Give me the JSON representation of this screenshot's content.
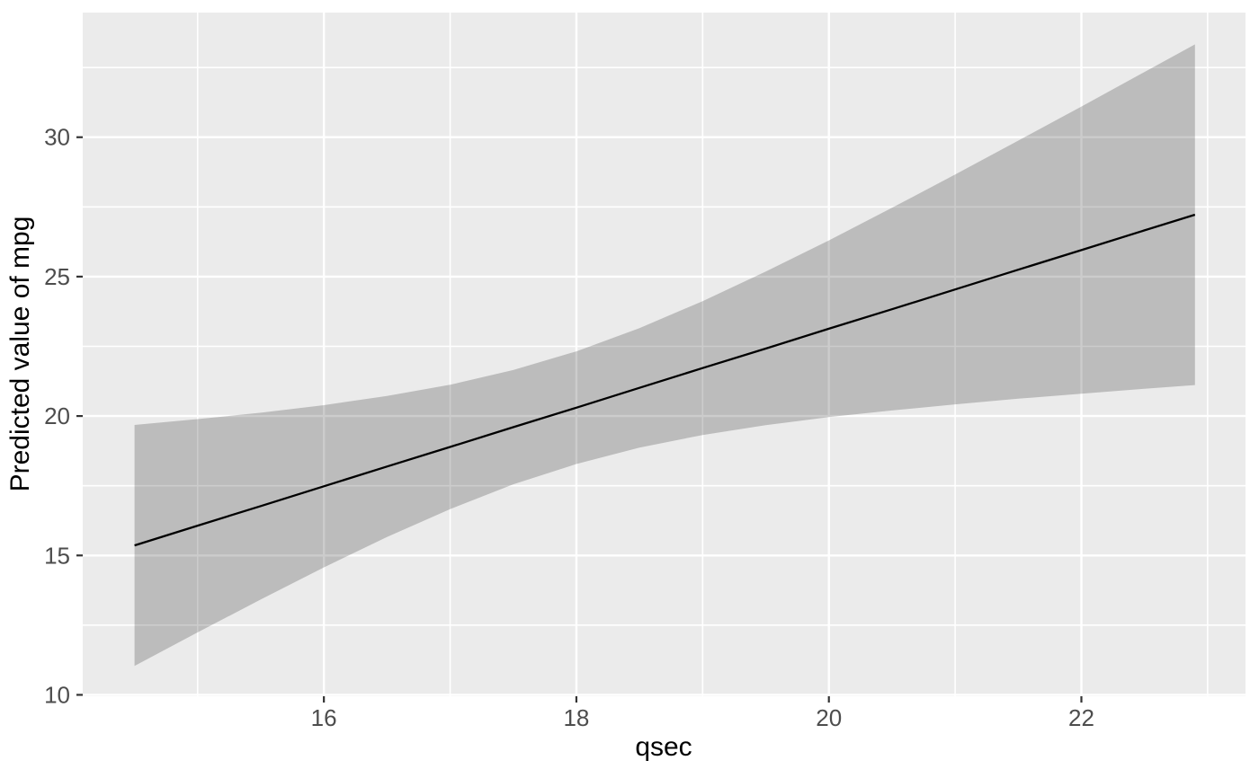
{
  "figure": {
    "background_color": "#ffffff"
  },
  "chart_data": {
    "type": "line",
    "subtype": "regression-line-with-confidence-ribbon",
    "title": "",
    "xlabel": "qsec",
    "ylabel": "Predicted value of mpg",
    "xlim": [
      14.09,
      23.3
    ],
    "ylim": [
      9.95,
      34.47
    ],
    "x_major_ticks": [
      16,
      18,
      20,
      22
    ],
    "y_major_ticks": [
      10,
      15,
      20,
      25,
      30
    ],
    "x_minor_gridlines": [
      15,
      17,
      19,
      21,
      23
    ],
    "y_minor_gridlines": [
      12.5,
      17.5,
      22.5,
      27.5,
      32.5
    ],
    "grid": "on",
    "legend_position": "none",
    "x": [
      14.5,
      15.0,
      15.5,
      16.0,
      16.5,
      17.0,
      17.5,
      18.0,
      18.5,
      19.0,
      19.5,
      20.0,
      20.5,
      21.0,
      21.5,
      22.0,
      22.5,
      22.9
    ],
    "series": [
      {
        "name": "fitted-line",
        "values": [
          15.36,
          16.07,
          16.77,
          17.48,
          18.19,
          18.89,
          19.6,
          20.3,
          21.01,
          21.72,
          22.42,
          23.13,
          23.83,
          24.54,
          25.25,
          25.95,
          26.66,
          27.22
        ]
      }
    ],
    "ribbon": {
      "name": "confidence-interval",
      "lower": [
        11.04,
        12.24,
        13.42,
        14.57,
        15.66,
        16.66,
        17.55,
        18.28,
        18.87,
        19.32,
        19.67,
        19.96,
        20.2,
        20.42,
        20.62,
        20.8,
        20.98,
        21.11
      ],
      "upper": [
        19.68,
        19.89,
        20.12,
        20.39,
        20.72,
        21.12,
        21.65,
        22.32,
        23.15,
        24.12,
        25.18,
        26.3,
        27.47,
        28.66,
        29.88,
        31.1,
        32.34,
        33.33
      ]
    },
    "colors": {
      "panel_background": "#EBEBEB",
      "gridline": "#FFFFFF",
      "ribbon_fill": "rgba(0,0,0,0.2)",
      "line": "#000000",
      "tick_mark": "#333333",
      "tick_label": "#4D4D4D",
      "axis_title": "#000000"
    }
  }
}
